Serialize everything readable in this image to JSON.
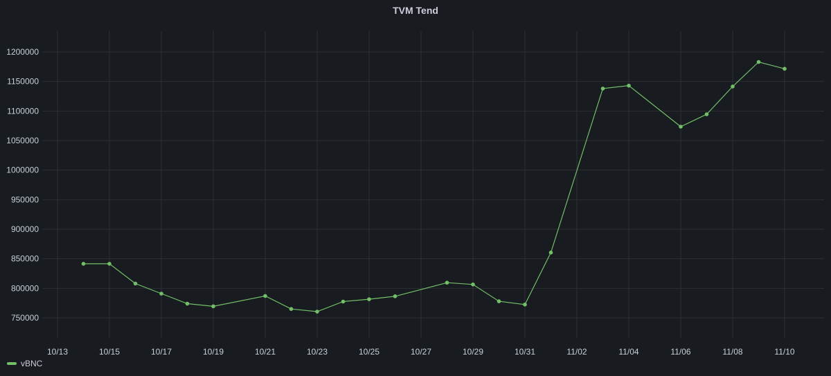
{
  "panel": {
    "title": "TVM Tend"
  },
  "legend": {
    "series_name": "vBNC",
    "color": "#73bf69"
  },
  "chart_data": {
    "type": "line",
    "title": "TVM Tend",
    "xlabel": "",
    "ylabel": "",
    "series": [
      {
        "name": "vBNC",
        "color": "#73bf69",
        "points": [
          {
            "x": "2021-10-14",
            "y": 841500
          },
          {
            "x": "2021-10-15",
            "y": 841500
          },
          {
            "x": "2021-10-16",
            "y": 808000
          },
          {
            "x": "2021-10-17",
            "y": 791000
          },
          {
            "x": "2021-10-18",
            "y": 774000
          },
          {
            "x": "2021-10-19",
            "y": 769500
          },
          {
            "x": "2021-10-21",
            "y": 787000
          },
          {
            "x": "2021-10-22",
            "y": 765000
          },
          {
            "x": "2021-10-23",
            "y": 760500
          },
          {
            "x": "2021-10-24",
            "y": 777500
          },
          {
            "x": "2021-10-25",
            "y": 781500
          },
          {
            "x": "2021-10-26",
            "y": 786500
          },
          {
            "x": "2021-10-28",
            "y": 809500
          },
          {
            "x": "2021-10-29",
            "y": 806500
          },
          {
            "x": "2021-10-30",
            "y": 778000
          },
          {
            "x": "2021-10-31",
            "y": 772500
          },
          {
            "x": "2021-11-01",
            "y": 860500
          },
          {
            "x": "2021-11-03",
            "y": 1138000
          },
          {
            "x": "2021-11-04",
            "y": 1143000
          },
          {
            "x": "2021-11-06",
            "y": 1073500
          },
          {
            "x": "2021-11-07",
            "y": 1094500
          },
          {
            "x": "2021-11-08",
            "y": 1141500
          },
          {
            "x": "2021-11-09",
            "y": 1183000
          },
          {
            "x": "2021-11-10",
            "y": 1171500
          }
        ]
      }
    ],
    "y_ticks": [
      750000,
      800000,
      850000,
      900000,
      950000,
      1000000,
      1050000,
      1100000,
      1150000,
      1200000
    ],
    "x_ticks": [
      "10/13",
      "10/15",
      "10/17",
      "10/19",
      "10/21",
      "10/23",
      "10/25",
      "10/27",
      "10/29",
      "10/31",
      "11/02",
      "11/04",
      "11/06",
      "11/08",
      "11/10"
    ],
    "ylim": [
      705000,
      1225000
    ],
    "grid": true,
    "legend_position": "bottom-left"
  }
}
